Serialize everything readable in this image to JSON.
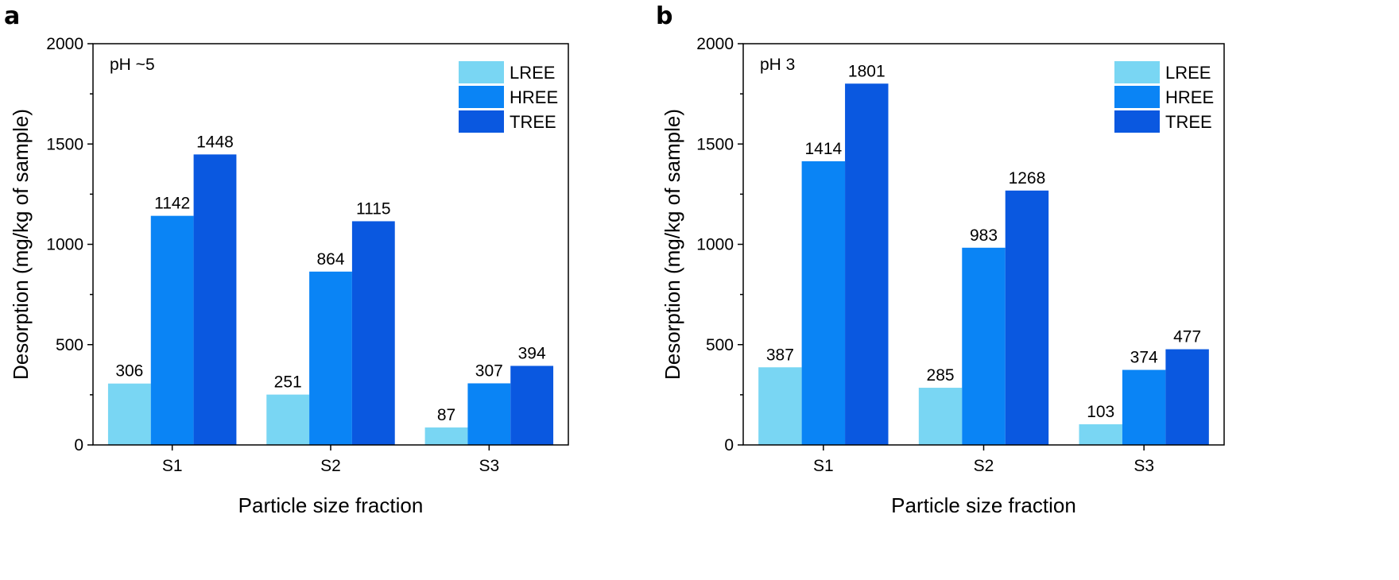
{
  "chart_data": [
    {
      "type": "bar",
      "panel": "a",
      "annotation": "pH ~5",
      "categories": [
        "S1",
        "S2",
        "S3"
      ],
      "series": [
        {
          "name": "LREE",
          "color": "#79d6f3",
          "values": [
            306,
            251,
            87
          ]
        },
        {
          "name": "HREE",
          "color": "#0a84f5",
          "values": [
            1142,
            864,
            307
          ]
        },
        {
          "name": "TREE",
          "color": "#0a58e0",
          "values": [
            1448,
            1115,
            394
          ]
        }
      ],
      "xlabel": "Particle size fraction",
      "ylabel": "Desorption (mg/kg of sample)",
      "ylim": [
        0,
        2000
      ],
      "yticks": [
        0,
        500,
        1000,
        1500,
        2000
      ],
      "grid": false,
      "legend_position": "top-right"
    },
    {
      "type": "bar",
      "panel": "b",
      "annotation": "pH 3",
      "categories": [
        "S1",
        "S2",
        "S3"
      ],
      "series": [
        {
          "name": "LREE",
          "color": "#79d6f3",
          "values": [
            387,
            285,
            103
          ]
        },
        {
          "name": "HREE",
          "color": "#0a84f5",
          "values": [
            1414,
            983,
            374
          ]
        },
        {
          "name": "TREE",
          "color": "#0a58e0",
          "values": [
            1801,
            1268,
            477
          ]
        }
      ],
      "xlabel": "Particle size fraction",
      "ylabel": "Desorption (mg/kg of sample)",
      "ylim": [
        0,
        2000
      ],
      "yticks": [
        0,
        500,
        1000,
        1500,
        2000
      ],
      "grid": false,
      "legend_position": "top-right"
    }
  ]
}
